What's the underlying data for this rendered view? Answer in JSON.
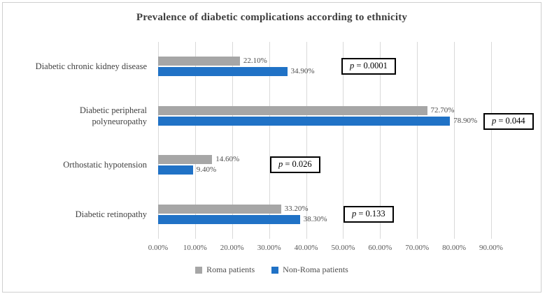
{
  "chart_data": {
    "type": "bar",
    "orientation": "horizontal",
    "title": "Prevalence of diabetic complications according to ethnicity",
    "xlabel": "",
    "ylabel": "",
    "xlim": [
      0,
      90
    ],
    "grid": true,
    "legend_position": "bottom",
    "categories": [
      "Diabetic chronic kidney disease",
      "Diabetic peripheral\npolyneuropathy",
      "Orthostatic hypotension",
      "Diabetic retinopathy"
    ],
    "series": [
      {
        "name": "Roma patients",
        "color": "#a6a6a6",
        "values": [
          22.1,
          72.7,
          14.6,
          33.2
        ]
      },
      {
        "name": "Non-Roma patients",
        "color": "#2072c6",
        "values": [
          34.9,
          78.9,
          9.4,
          38.3
        ]
      }
    ],
    "value_labels": [
      [
        "22.10%",
        "72.70%",
        "14.60%",
        "33.20%"
      ],
      [
        "34.90%",
        "78.90%",
        "9.40%",
        "38.30%"
      ]
    ],
    "p_values": [
      "p = 0.0001",
      "p = 0.044",
      "p = 0.026",
      "p = 0.133"
    ],
    "x_ticks": [
      "0.00%",
      "10.00%",
      "20.00%",
      "30.00%",
      "40.00%",
      "50.00%",
      "60.00%",
      "70.00%",
      "80.00%",
      "90.00%"
    ]
  }
}
